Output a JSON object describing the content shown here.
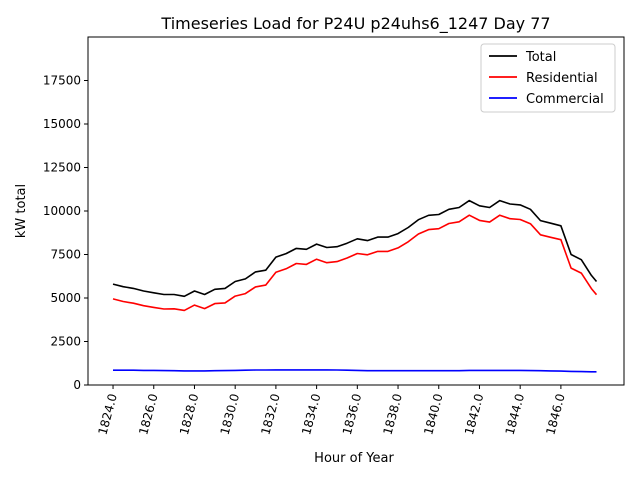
{
  "chart_data": {
    "type": "line",
    "title": "Timeseries Load for P24U p24uhs6_1247  Day 77",
    "xlabel": "Hour of Year",
    "ylabel": "kW total",
    "xlim": [
      1822.77,
      1849.1
    ],
    "ylim": [
      0,
      20000
    ],
    "xticks": [
      1824,
      1826,
      1828,
      1830,
      1832,
      1834,
      1836,
      1838,
      1840,
      1842,
      1844,
      1846
    ],
    "xtick_labels": [
      "1824.0",
      "1826.0",
      "1828.0",
      "1830.0",
      "1832.0",
      "1834.0",
      "1836.0",
      "1838.0",
      "1840.0",
      "1842.0",
      "1844.0",
      "1846.0"
    ],
    "yticks": [
      0,
      2500,
      5000,
      7500,
      10000,
      12500,
      15000,
      17500
    ],
    "ytick_labels": [
      "0",
      "2500",
      "5000",
      "7500",
      "10000",
      "12500",
      "15000",
      "17500"
    ],
    "grid": false,
    "legend_position": "top-right",
    "x": [
      1824,
      1824.5,
      1825,
      1825.5,
      1826,
      1826.5,
      1827,
      1827.5,
      1828,
      1828.5,
      1829,
      1829.5,
      1830,
      1830.5,
      1831,
      1831.5,
      1832,
      1832.5,
      1833,
      1833.5,
      1834,
      1834.5,
      1835,
      1835.5,
      1836,
      1836.5,
      1837,
      1837.5,
      1838,
      1838.5,
      1839,
      1839.5,
      1840,
      1840.5,
      1841,
      1841.5,
      1842,
      1842.5,
      1843,
      1843.5,
      1844,
      1844.5,
      1845,
      1845.5,
      1846,
      1846.5,
      1847,
      1847.5,
      1847.75
    ],
    "series": [
      {
        "name": "Total",
        "color": "#000000",
        "values": [
          5800,
          5650,
          5550,
          5400,
          5300,
          5200,
          5200,
          5100,
          5400,
          5200,
          5500,
          5550,
          5950,
          6100,
          6500,
          6600,
          7350,
          7550,
          7850,
          7800,
          8100,
          7900,
          7950,
          8150,
          8400,
          8300,
          8500,
          8500,
          8700,
          9050,
          9500,
          9750,
          9800,
          10100,
          10200,
          10600,
          10300,
          10200,
          10600,
          10400,
          10350,
          10100,
          9450,
          9300,
          9150,
          7500,
          7200,
          6300,
          5950
        ]
      },
      {
        "name": "Residential",
        "color": "#ff0000",
        "values": [
          4950,
          4800,
          4700,
          4560,
          4460,
          4370,
          4380,
          4290,
          4590,
          4390,
          4680,
          4720,
          5110,
          5250,
          5640,
          5740,
          6480,
          6680,
          6980,
          6930,
          7230,
          7030,
          7090,
          7300,
          7560,
          7480,
          7680,
          7680,
          7880,
          8230,
          8680,
          8930,
          8980,
          9280,
          9380,
          9760,
          9460,
          9360,
          9760,
          9560,
          9510,
          9270,
          8630,
          8490,
          8350,
          6720,
          6430,
          5540,
          5190
        ]
      },
      {
        "name": "Commercial",
        "color": "#0000ff",
        "values": [
          850,
          850,
          850,
          840,
          840,
          830,
          820,
          810,
          810,
          810,
          820,
          830,
          840,
          850,
          860,
          860,
          870,
          870,
          870,
          870,
          870,
          870,
          860,
          850,
          840,
          820,
          820,
          820,
          820,
          820,
          820,
          820,
          820,
          820,
          820,
          840,
          840,
          840,
          840,
          840,
          840,
          830,
          820,
          810,
          800,
          780,
          770,
          760,
          760
        ]
      }
    ]
  }
}
